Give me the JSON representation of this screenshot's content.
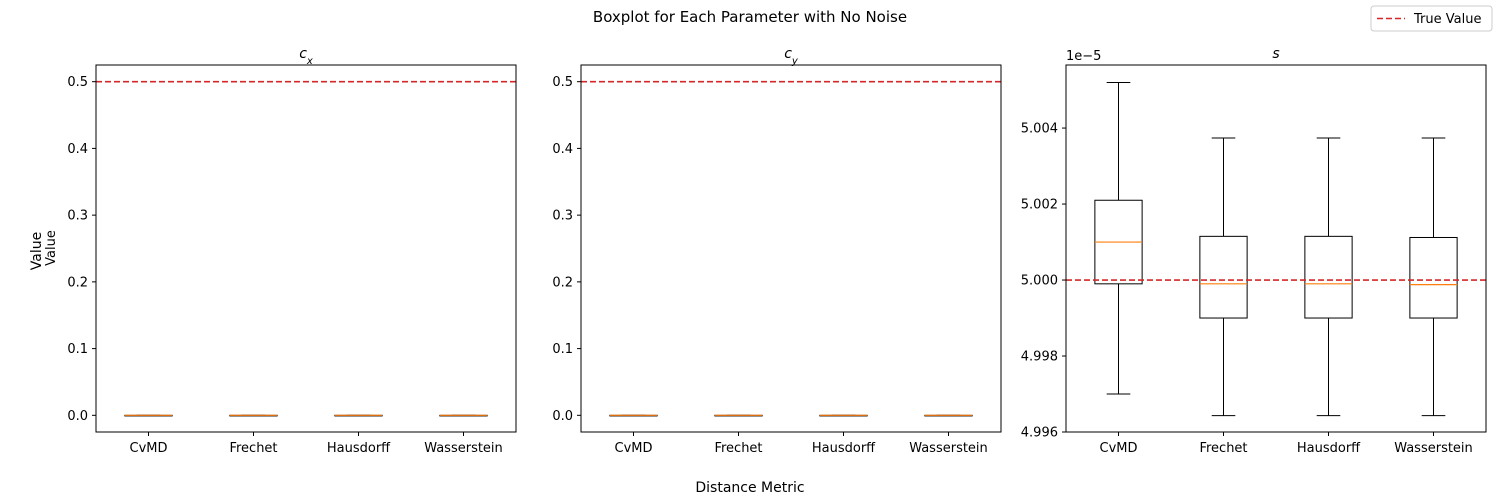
{
  "figure": {
    "title": "Boxplot for Each Parameter with No Noise",
    "xlabel": "Distance Metric",
    "ylabel_outer": "Value",
    "ylabel_inner": "Value",
    "legend": {
      "label": "True Value",
      "color": "#d62728",
      "style": "dashed",
      "placement": "top-right"
    }
  },
  "chart_data": [
    {
      "type": "box",
      "title": "c_x",
      "title_base": "c",
      "title_sub": "x",
      "categories": [
        "CvMD",
        "Frechet",
        "Hausdorff",
        "Wasserstein"
      ],
      "ylim": [
        -0.025,
        0.525
      ],
      "yticks": [
        0.0,
        0.1,
        0.2,
        0.3,
        0.4,
        0.5
      ],
      "ytick_labels": [
        "0.0",
        "0.1",
        "0.2",
        "0.3",
        "0.4",
        "0.5"
      ],
      "true_value": 0.5,
      "boxes": [
        {
          "whislo": 0.0,
          "q1": 0.0,
          "med": 0.0,
          "q3": 0.0,
          "whishi": 0.0
        },
        {
          "whislo": 0.0,
          "q1": 0.0,
          "med": 0.0,
          "q3": 0.0,
          "whishi": 0.0
        },
        {
          "whislo": 0.0,
          "q1": 0.0,
          "med": 0.0,
          "q3": 0.0,
          "whishi": 0.0
        },
        {
          "whislo": 0.0,
          "q1": 0.0,
          "med": 0.0,
          "q3": 0.0,
          "whishi": 0.0
        }
      ]
    },
    {
      "type": "box",
      "title": "c_y",
      "title_base": "c",
      "title_sub": "y",
      "categories": [
        "CvMD",
        "Frechet",
        "Hausdorff",
        "Wasserstein"
      ],
      "ylim": [
        -0.025,
        0.525
      ],
      "yticks": [
        0.0,
        0.1,
        0.2,
        0.3,
        0.4,
        0.5
      ],
      "ytick_labels": [
        "0.0",
        "0.1",
        "0.2",
        "0.3",
        "0.4",
        "0.5"
      ],
      "true_value": 0.5,
      "boxes": [
        {
          "whislo": 0.0,
          "q1": 0.0,
          "med": 0.0,
          "q3": 0.0,
          "whishi": 0.0
        },
        {
          "whislo": 0.0,
          "q1": 0.0,
          "med": 0.0,
          "q3": 0.0,
          "whishi": 0.0
        },
        {
          "whislo": 0.0,
          "q1": 0.0,
          "med": 0.0,
          "q3": 0.0,
          "whishi": 0.0
        },
        {
          "whislo": 0.0,
          "q1": 0.0,
          "med": 0.0,
          "q3": 0.0,
          "whishi": 0.0
        }
      ]
    },
    {
      "type": "box",
      "title": "s",
      "title_base": "s",
      "title_sub": "",
      "categories": [
        "CvMD",
        "Frechet",
        "Hausdorff",
        "Wasserstein"
      ],
      "offset_label": "1e−5",
      "ylim": [
        4.996,
        5.00566
      ],
      "yticks": [
        4.996,
        4.998,
        5.0,
        5.002,
        5.004
      ],
      "ytick_labels": [
        "4.996",
        "4.998",
        "5.000",
        "5.002",
        "5.004"
      ],
      "true_value": 5.0,
      "boxes": [
        {
          "whislo": 4.997,
          "q1": 4.9999,
          "med": 5.001,
          "q3": 5.0021,
          "whishi": 5.0052
        },
        {
          "whislo": 4.99643,
          "q1": 4.999,
          "med": 4.9999,
          "q3": 5.00115,
          "whishi": 5.00374
        },
        {
          "whislo": 4.99643,
          "q1": 4.999,
          "med": 4.9999,
          "q3": 5.00115,
          "whishi": 5.00374
        },
        {
          "whislo": 4.99643,
          "q1": 4.999,
          "med": 4.99988,
          "q3": 5.00112,
          "whishi": 5.00374
        }
      ]
    }
  ]
}
